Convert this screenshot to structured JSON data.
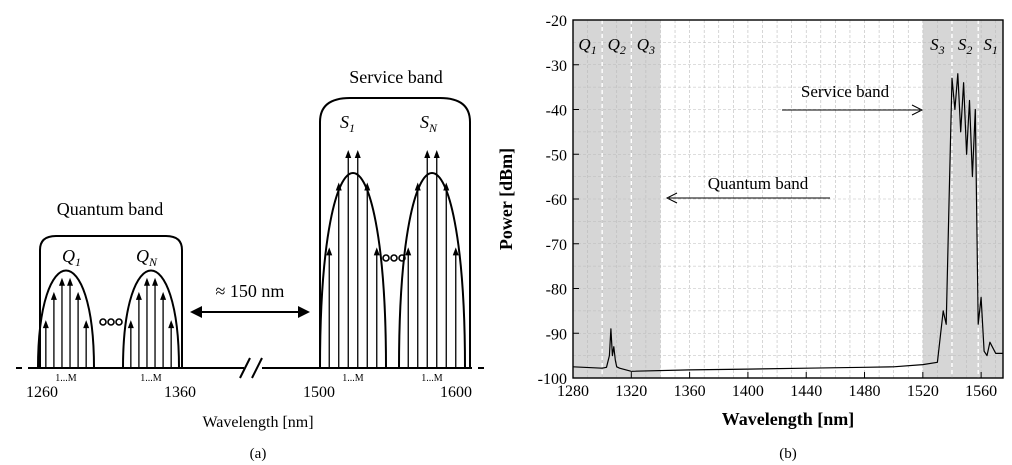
{
  "panel_a": {
    "caption": "(a)",
    "quantum_band_label": "Quantum band",
    "service_band_label": "Service band",
    "q1_label": "Q",
    "q1_sub": "1",
    "qn_label": "Q",
    "qn_sub": "N",
    "s1_label": "S",
    "s1_sub": "1",
    "sn_label": "S",
    "sn_sub": "N",
    "gap_label": "≈ 150 nm",
    "sub_channel_label": "1...M",
    "tick_labels": [
      "1260",
      "1360",
      "1500",
      "1600"
    ],
    "xlabel": "Wavelength [nm]"
  },
  "panel_b": {
    "caption": "(b)",
    "service_band_annotation": "Service band",
    "quantum_band_annotation": "Quantum band",
    "region_labels": [
      {
        "main": "Q",
        "sub": "1"
      },
      {
        "main": "Q",
        "sub": "2"
      },
      {
        "main": "Q",
        "sub": "3"
      },
      {
        "main": "S",
        "sub": "3"
      },
      {
        "main": "S",
        "sub": "2"
      },
      {
        "main": "S",
        "sub": "1"
      }
    ]
  },
  "chart_data": {
    "type": "line",
    "title": "",
    "xlabel": "Wavelength [nm]",
    "ylabel": "Power [dBm]",
    "xlim": [
      1280,
      1575
    ],
    "ylim": [
      -100,
      -20
    ],
    "xticks": [
      1280,
      1320,
      1360,
      1400,
      1440,
      1480,
      1520,
      1560
    ],
    "yticks": [
      -20,
      -30,
      -40,
      -50,
      -60,
      -70,
      -80,
      -90,
      -100
    ],
    "grid": true,
    "shaded_regions": [
      [
        1280,
        1340
      ],
      [
        1520,
        1575
      ]
    ],
    "region_dividers": [
      1300,
      1320,
      1540,
      1558
    ],
    "colors": {
      "shade": "#d6d6d6",
      "line": "#000000",
      "grid": "#bbbbbb"
    },
    "series": [
      {
        "x": [
          1280,
          1300,
          1303,
          1305,
          1306,
          1307,
          1308,
          1309,
          1310,
          1312,
          1320,
          1360,
          1400,
          1440,
          1480,
          1500,
          1520,
          1530,
          1534,
          1536,
          1538,
          1540,
          1542,
          1544,
          1546,
          1548,
          1550,
          1552,
          1554,
          1556,
          1558,
          1560,
          1562,
          1564,
          1566,
          1570,
          1575
        ],
        "y": [
          -97.5,
          -97.8,
          -97.6,
          -95,
          -89,
          -95,
          -93,
          -96,
          -97.5,
          -97.8,
          -98.5,
          -98.2,
          -98,
          -97.8,
          -97.6,
          -97.5,
          -97,
          -96.5,
          -85,
          -88,
          -60,
          -33,
          -40,
          -32,
          -45,
          -34,
          -50,
          -38,
          -55,
          -40,
          -88,
          -82,
          -94,
          -95,
          -92,
          -94.5,
          -94.5
        ]
      }
    ]
  }
}
